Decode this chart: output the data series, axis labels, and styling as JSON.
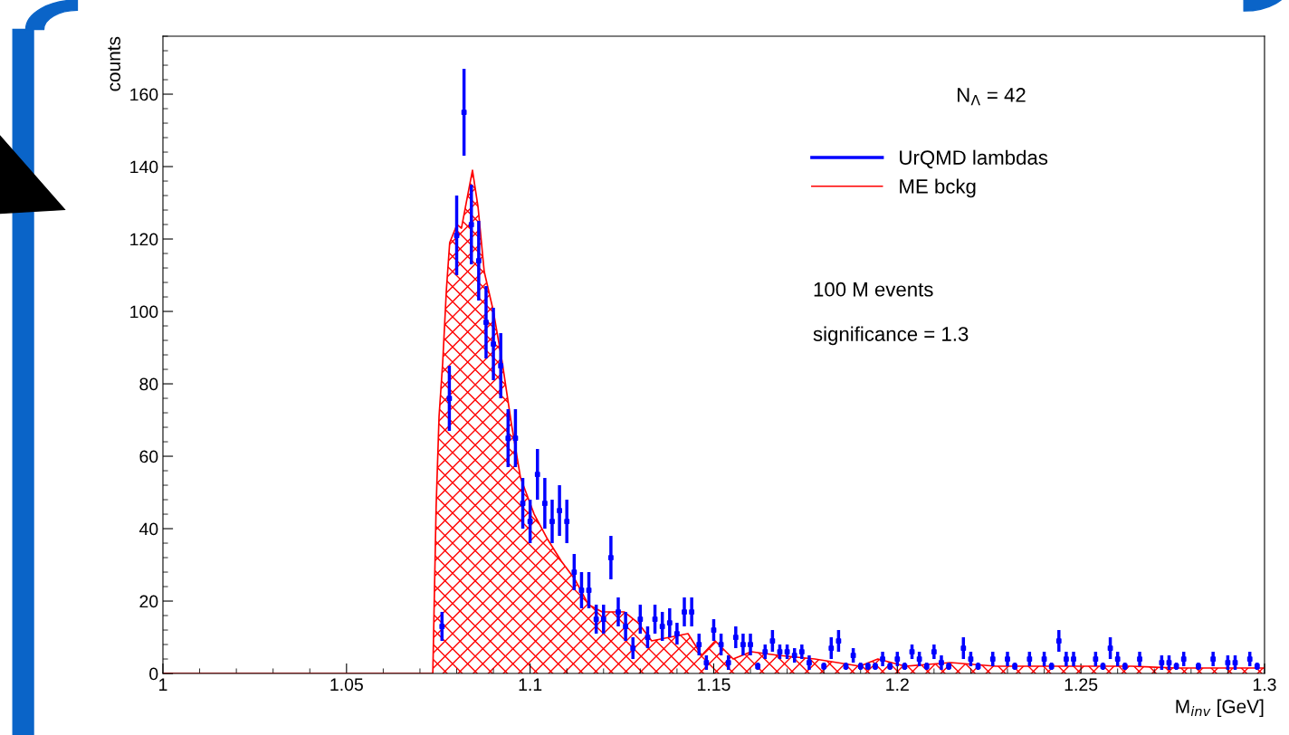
{
  "chart_data": {
    "type": "scatter",
    "xlabel": "M$_{inv}$ [GeV]",
    "ylabel": "counts",
    "xlim": [
      1,
      1.3
    ],
    "xticks": [
      1,
      1.05,
      1.1,
      1.15,
      1.2,
      1.25,
      1.3
    ],
    "ylim": [
      0,
      176
    ],
    "yticks": [
      0,
      20,
      40,
      60,
      80,
      100,
      120,
      140,
      160
    ],
    "grid": false,
    "legend": "top right",
    "annotations": [
      "N$_{Λ}$ = 42",
      "100 M events",
      "significance = 1.3"
    ],
    "series": [
      {
        "name": "UrQMD lambdas",
        "color": "#0000ff",
        "marker": "square",
        "x": [
          1.076,
          1.078,
          1.08,
          1.082,
          1.084,
          1.086,
          1.088,
          1.09,
          1.092,
          1.094,
          1.096,
          1.098,
          1.1,
          1.102,
          1.104,
          1.106,
          1.108,
          1.11,
          1.112,
          1.114,
          1.116,
          1.118,
          1.12,
          1.122,
          1.124,
          1.126,
          1.128,
          1.13,
          1.132,
          1.134,
          1.136,
          1.138,
          1.14,
          1.142,
          1.144,
          1.146,
          1.148,
          1.15,
          1.152,
          1.154,
          1.156,
          1.158,
          1.16,
          1.162,
          1.164,
          1.166,
          1.168,
          1.17,
          1.172,
          1.174,
          1.176,
          1.18,
          1.182,
          1.184,
          1.186,
          1.188,
          1.19,
          1.192,
          1.194,
          1.196,
          1.198,
          1.2,
          1.202,
          1.204,
          1.206,
          1.208,
          1.21,
          1.212,
          1.214,
          1.218,
          1.22,
          1.222,
          1.226,
          1.23,
          1.232,
          1.236,
          1.24,
          1.242,
          1.244,
          1.246,
          1.248,
          1.254,
          1.256,
          1.258,
          1.26,
          1.262,
          1.266,
          1.272,
          1.274,
          1.276,
          1.278,
          1.282,
          1.286,
          1.29,
          1.292,
          1.296,
          1.298
        ],
        "values": [
          13,
          76,
          121,
          155,
          124,
          114,
          97,
          91,
          85,
          65,
          65,
          47,
          42,
          55,
          47,
          42,
          45,
          42,
          28,
          23,
          23,
          15,
          15,
          32,
          17,
          13,
          7,
          15,
          10,
          15,
          13,
          14,
          11,
          17,
          17,
          8,
          3,
          12,
          8,
          3,
          10,
          8,
          8,
          2,
          6,
          9,
          6,
          6,
          5,
          6,
          3,
          2,
          7,
          9,
          2,
          5,
          2,
          2,
          2,
          4,
          2,
          4,
          2,
          6,
          4,
          2,
          6,
          3,
          2,
          7,
          4,
          2,
          4,
          4,
          2,
          4,
          4,
          2,
          9,
          4,
          4,
          4,
          2,
          7,
          4,
          2,
          4,
          3,
          3,
          2,
          4,
          2,
          4,
          3,
          3,
          4,
          2
        ],
        "errors": [
          4,
          9,
          11,
          12,
          11,
          11,
          10,
          10,
          9,
          8,
          8,
          7,
          6,
          7,
          7,
          6,
          7,
          6,
          5,
          5,
          5,
          4,
          4,
          6,
          4,
          4,
          3,
          4,
          3,
          4,
          4,
          4,
          3,
          4,
          4,
          3,
          2,
          3,
          3,
          2,
          3,
          3,
          3,
          1,
          2,
          3,
          2,
          2,
          2,
          2,
          2,
          1,
          3,
          3,
          1,
          2,
          1,
          1,
          1,
          2,
          1,
          2,
          1,
          2,
          2,
          1,
          2,
          2,
          1,
          3,
          2,
          1,
          2,
          2,
          1,
          2,
          2,
          1,
          3,
          2,
          2,
          2,
          1,
          3,
          2,
          1,
          2,
          2,
          2,
          1,
          2,
          1,
          2,
          2,
          2,
          2,
          1
        ]
      },
      {
        "name": "ME bckg",
        "type": "area",
        "color": "#ff0000",
        "x": [
          1.0,
          1.07,
          1.0735,
          1.0744,
          1.0752,
          1.0762,
          1.0772,
          1.0781,
          1.0801,
          1.0813,
          1.0826,
          1.0843,
          1.0858,
          1.0875,
          1.09,
          1.0924,
          1.0949,
          1.0974,
          1.1011,
          1.1048,
          1.1085,
          1.1122,
          1.1159,
          1.1196,
          1.1257,
          1.1294,
          1.1331,
          1.138,
          1.143,
          1.1467,
          1.1504,
          1.1553,
          1.1602,
          1.1676,
          1.1775,
          1.1898,
          1.1947,
          1.2021,
          1.2145,
          1.2268,
          1.2391,
          1.2514,
          1.2638,
          1.2761,
          1.3
        ],
        "values": [
          0,
          0,
          0,
          46,
          71,
          86,
          106,
          119,
          124,
          123,
          130,
          139,
          129,
          111,
          100,
          86,
          69,
          54,
          44,
          37,
          31,
          26,
          19,
          17,
          17,
          14,
          9,
          10,
          11,
          5,
          9,
          4,
          6,
          5,
          4,
          2,
          4,
          2,
          3,
          2,
          2,
          2,
          2,
          1.5,
          1.5
        ]
      }
    ]
  }
}
